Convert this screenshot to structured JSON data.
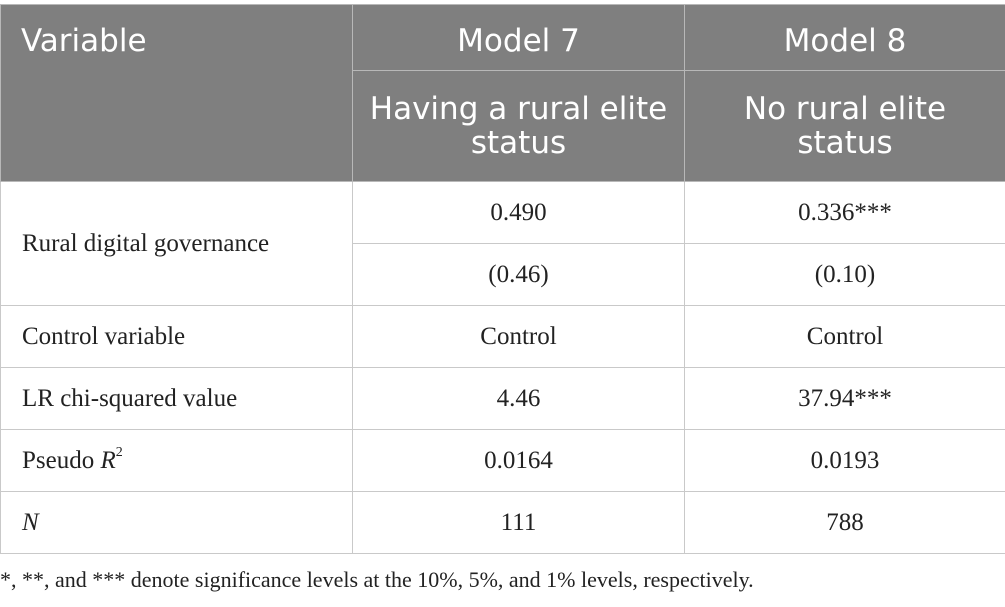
{
  "header": {
    "variable": "Variable",
    "model7": "Model 7",
    "model8": "Model 8",
    "model7_sub": "Having a rural elite status",
    "model8_sub": "No rural elite status"
  },
  "rows": {
    "digital_governance": {
      "label": "Rural digital governance",
      "m7_coef": "0.490",
      "m8_coef": "0.336***",
      "m7_se": "(0.46)",
      "m8_se": "(0.10)"
    },
    "control": {
      "label": "Control variable",
      "m7": "Control",
      "m8": "Control"
    },
    "lr_chi": {
      "label": "LR chi-squared value",
      "m7": "4.46",
      "m8": "37.94***"
    },
    "pseudo_r2": {
      "label": "Pseudo ",
      "label_italic": "R",
      "label_sup": "2",
      "m7": "0.0164",
      "m8": "0.0193"
    },
    "n": {
      "label": "N",
      "m7": "111",
      "m8": "788"
    }
  },
  "footnote": "*, **, and *** denote significance levels at the 10%, 5%, and 1% levels, respectively."
}
